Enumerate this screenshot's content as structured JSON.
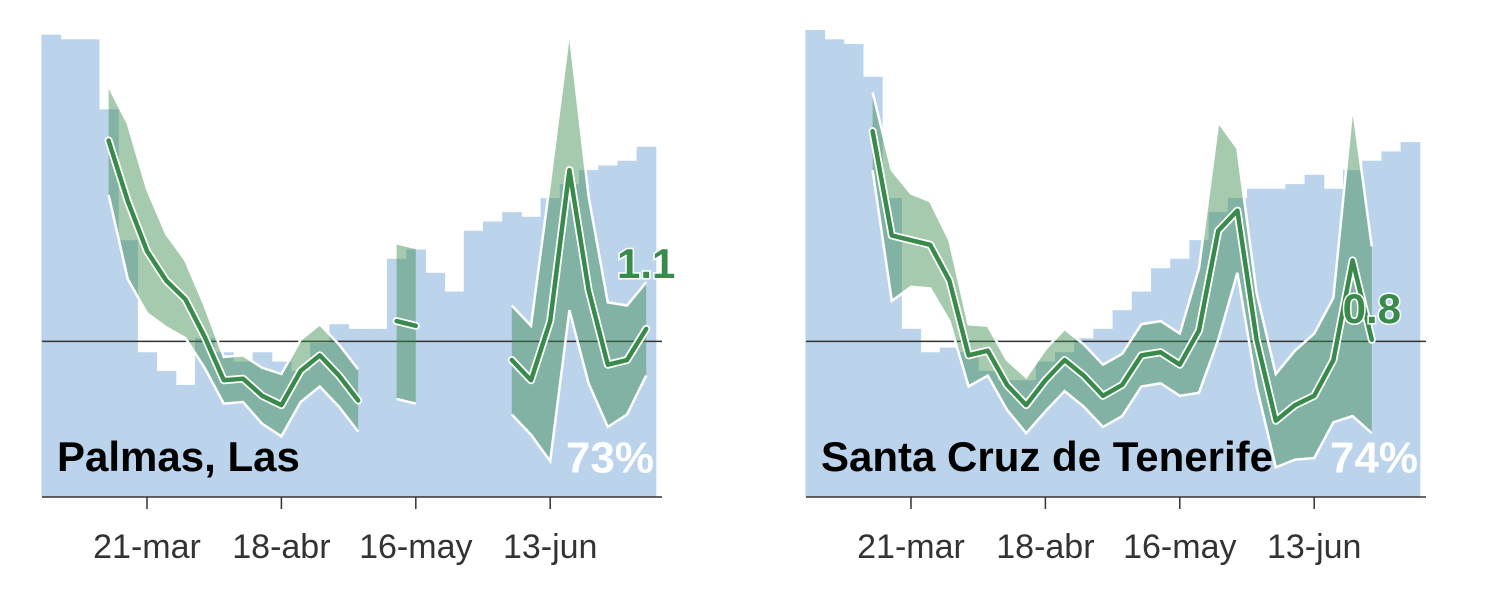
{
  "chart_data": [
    {
      "type": "bar",
      "title": "Palmas, Las",
      "categories": [
        null,
        null,
        null,
        null,
        null,
        "21-mar",
        null,
        null,
        null,
        null,
        null,
        null,
        "18-abr",
        null,
        null,
        null,
        null,
        null,
        null,
        "16-may",
        null,
        null,
        null,
        null,
        null,
        null,
        "13-jun",
        null,
        null,
        null,
        null,
        null
      ],
      "bars": {
        "color": "#bcd3ec",
        "values": [
          99,
          98,
          98,
          83,
          55,
          31,
          27,
          24,
          34,
          31,
          29,
          31,
          29,
          27,
          33,
          37,
          36,
          36,
          51,
          53,
          48,
          44,
          57,
          59,
          61,
          60,
          64,
          67,
          70,
          71,
          72,
          75
        ]
      },
      "line": {
        "color": "#3a8a4c",
        "values": [
          null,
          null,
          null,
          2.29,
          1.9,
          1.58,
          1.39,
          1.27,
          1.03,
          0.75,
          0.76,
          0.65,
          0.59,
          0.81,
          0.91,
          0.78,
          0.62,
          null,
          1.13,
          1.1,
          null,
          null,
          null,
          null,
          0.88,
          0.75,
          1.13,
          2.1,
          1.33,
          0.85,
          0.88,
          1.08
        ],
        "upper": [
          null,
          null,
          null,
          2.64,
          2.4,
          1.98,
          1.69,
          1.52,
          1.23,
          0.9,
          0.91,
          0.83,
          0.79,
          1.01,
          1.11,
          0.98,
          0.82,
          null,
          1.63,
          1.6,
          null,
          null,
          null,
          null,
          1.23,
          1.1,
          2.03,
          3.0,
          1.93,
          1.25,
          1.23,
          1.38
        ],
        "lower": [
          null,
          null,
          null,
          1.94,
          1.4,
          1.18,
          1.09,
          1.02,
          0.83,
          0.6,
          0.61,
          0.47,
          0.39,
          0.61,
          0.71,
          0.58,
          0.42,
          null,
          0.63,
          0.6,
          null,
          null,
          null,
          null,
          0.53,
          0.4,
          0.23,
          1.2,
          0.73,
          0.45,
          0.53,
          0.78
        ]
      },
      "ylim": [
        0,
        3
      ],
      "y2lim": [
        0,
        100
      ],
      "hline": 1,
      "line_label": "1.1",
      "percent_label": "73%"
    },
    {
      "type": "bar",
      "title": "Santa Cruz de Tenerife",
      "categories": [
        null,
        null,
        null,
        null,
        null,
        "21-mar",
        null,
        null,
        null,
        null,
        null,
        null,
        "18-abr",
        null,
        null,
        null,
        null,
        null,
        null,
        "16-may",
        null,
        null,
        null,
        null,
        null,
        null,
        "13-jun",
        null,
        null,
        null,
        null,
        null
      ],
      "bars": {
        "color": "#bcd3ec",
        "values": [
          100,
          98,
          97,
          90,
          64,
          36,
          31,
          32,
          31,
          27,
          25,
          25,
          29,
          31,
          34,
          36,
          40,
          44,
          49,
          51,
          55,
          61,
          64,
          66,
          66,
          67,
          69,
          66,
          70,
          72,
          74,
          76
        ]
      },
      "line": {
        "color": "#3a8a4c",
        "values": [
          null,
          null,
          null,
          2.35,
          1.68,
          1.65,
          1.62,
          1.39,
          0.91,
          0.94,
          0.72,
          0.59,
          0.75,
          0.88,
          0.78,
          0.65,
          0.72,
          0.91,
          0.93,
          0.85,
          1.07,
          1.71,
          1.84,
          1.01,
          0.49,
          0.59,
          0.65,
          0.88,
          1.52,
          1.01,
          null,
          null
        ],
        "upper": [
          null,
          null,
          null,
          2.6,
          2.1,
          1.95,
          1.9,
          1.65,
          1.11,
          1.1,
          0.88,
          0.77,
          0.95,
          1.08,
          0.98,
          0.85,
          0.92,
          1.11,
          1.13,
          1.05,
          1.47,
          2.41,
          2.24,
          1.31,
          0.79,
          0.94,
          1.05,
          1.28,
          2.52,
          1.61,
          null,
          null
        ],
        "lower": [
          null,
          null,
          null,
          2.1,
          1.26,
          1.35,
          1.34,
          1.13,
          0.71,
          0.78,
          0.56,
          0.41,
          0.55,
          0.68,
          0.58,
          0.45,
          0.52,
          0.71,
          0.73,
          0.65,
          0.67,
          1.01,
          1.44,
          0.71,
          0.19,
          0.24,
          0.25,
          0.48,
          0.52,
          0.41,
          null,
          null
        ]
      },
      "ylim": [
        0,
        3
      ],
      "y2lim": [
        0,
        100
      ],
      "hline": 1,
      "line_label": "0.8",
      "percent_label": "74%"
    }
  ]
}
